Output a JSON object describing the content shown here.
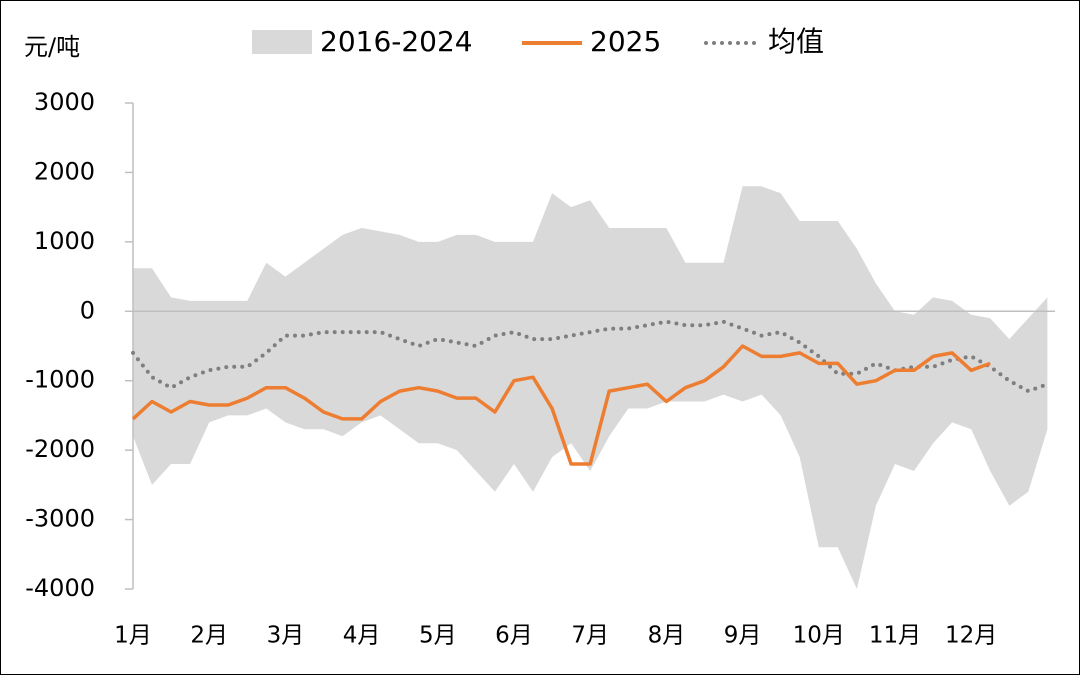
{
  "chart_data": {
    "type": "line",
    "y_label": "元/吨",
    "x": [
      1,
      1.25,
      1.5,
      1.75,
      2,
      2.25,
      2.5,
      2.75,
      3,
      3.25,
      3.5,
      3.75,
      4,
      4.25,
      4.5,
      4.75,
      5,
      5.25,
      5.5,
      5.75,
      6,
      6.25,
      6.5,
      6.75,
      7,
      7.25,
      7.5,
      7.75,
      8,
      8.25,
      8.5,
      8.75,
      9,
      9.25,
      9.5,
      9.75,
      10,
      10.25,
      10.5,
      10.75,
      11,
      11.25,
      11.5,
      11.75,
      12,
      12.25,
      12.5,
      12.75,
      13
    ],
    "xlim": [
      1,
      13.1
    ],
    "xticks": [
      {
        "value": 1,
        "label": "1月"
      },
      {
        "value": 2,
        "label": "2月"
      },
      {
        "value": 3,
        "label": "3月"
      },
      {
        "value": 4,
        "label": "4月"
      },
      {
        "value": 5,
        "label": "5月"
      },
      {
        "value": 6,
        "label": "6月"
      },
      {
        "value": 7,
        "label": "7月"
      },
      {
        "value": 8,
        "label": "8月"
      },
      {
        "value": 9,
        "label": "9月"
      },
      {
        "value": 10,
        "label": "10月"
      },
      {
        "value": 11,
        "label": "11月"
      },
      {
        "value": 12,
        "label": "12月"
      }
    ],
    "ylim": [
      -4000,
      3000
    ],
    "yticks": [
      -4000,
      -3000,
      -2000,
      -1000,
      0,
      1000,
      2000,
      3000
    ],
    "series": [
      {
        "name": "2016-2024",
        "color": "#d9d9d9",
        "high": [
          620,
          620,
          200,
          150,
          150,
          150,
          150,
          700,
          500,
          700,
          900,
          1100,
          1200,
          1150,
          1100,
          1000,
          1000,
          1100,
          1100,
          1000,
          1000,
          1000,
          1700,
          1500,
          1600,
          1200,
          1200,
          1200,
          1200,
          700,
          700,
          700,
          1800,
          1800,
          1700,
          1300,
          1300,
          1300,
          900,
          400,
          0,
          -50,
          200,
          150,
          -50,
          -100,
          -400,
          -100,
          200
        ],
        "low": [
          -1800,
          -2500,
          -2200,
          -2200,
          -1600,
          -1500,
          -1500,
          -1400,
          -1600,
          -1700,
          -1700,
          -1800,
          -1600,
          -1500,
          -1700,
          -1900,
          -1900,
          -2000,
          -2300,
          -2600,
          -2200,
          -2600,
          -2100,
          -1900,
          -2300,
          -1800,
          -1400,
          -1400,
          -1300,
          -1300,
          -1300,
          -1200,
          -1300,
          -1200,
          -1500,
          -2100,
          -3400,
          -3400,
          -4000,
          -2800,
          -2200,
          -2300,
          -1900,
          -1600,
          -1700,
          -2300,
          -2800,
          -2600,
          -1700
        ]
      },
      {
        "name": "2025",
        "color": "#ed7d31",
        "values": [
          -1550,
          -1300,
          -1450,
          -1300,
          -1350,
          -1350,
          -1250,
          -1100,
          -1100,
          -1250,
          -1450,
          -1550,
          -1550,
          -1300,
          -1150,
          -1100,
          -1150,
          -1250,
          -1250,
          -1450,
          -1000,
          -950,
          -1400,
          -2200,
          -2200,
          -1150,
          -1100,
          -1050,
          -1300,
          -1100,
          -1000,
          -800,
          -500,
          -650,
          -650,
          -600,
          -750,
          -750,
          -1050,
          -1000,
          -850,
          -850,
          -650,
          -600,
          -850,
          -750,
          null,
          null,
          null
        ]
      },
      {
        "name": "均值",
        "color": "#7f7f7f",
        "values": [
          -600,
          -950,
          -1100,
          -950,
          -850,
          -800,
          -800,
          -600,
          -350,
          -350,
          -300,
          -300,
          -300,
          -300,
          -400,
          -500,
          -400,
          -450,
          -500,
          -350,
          -300,
          -400,
          -400,
          -350,
          -300,
          -250,
          -250,
          -200,
          -150,
          -200,
          -200,
          -150,
          -250,
          -350,
          -300,
          -450,
          -650,
          -900,
          -900,
          -750,
          -850,
          -800,
          -800,
          -700,
          -650,
          -800,
          -1000,
          -1150,
          -1050
        ]
      }
    ]
  }
}
